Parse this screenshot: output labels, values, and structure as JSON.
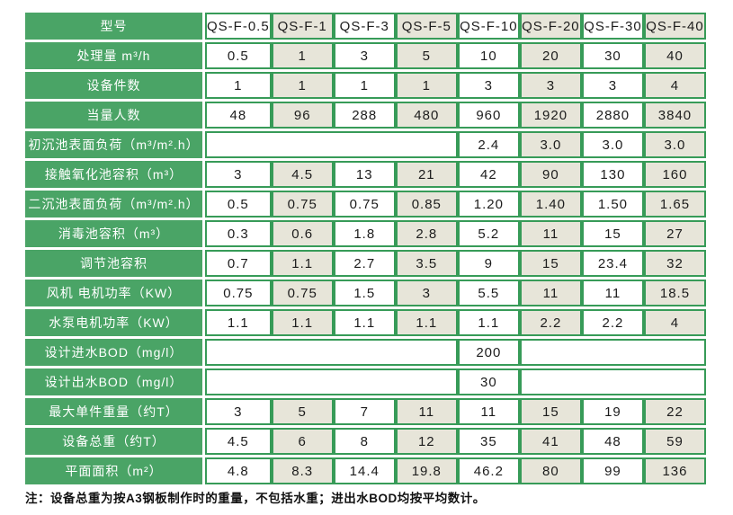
{
  "colors": {
    "header_green": "#4aa466",
    "border_green": "#379b58",
    "cell_shaded": "#e7e5d9",
    "cell_white": "#ffffff",
    "label_text": "#ffffff",
    "value_text": "#1c1c1c"
  },
  "table": {
    "model_row": {
      "label": "型号",
      "values": [
        "QS-F-0.5",
        "QS-F-1",
        "QS-F-3",
        "QS-F-5",
        "QS-F-10",
        "QS-F-20",
        "QS-F-30",
        "QS-F-40"
      ]
    },
    "rows": [
      {
        "label": "处理量 m³/h",
        "cells": [
          "0.5",
          "1",
          "3",
          "5",
          "10",
          "20",
          "30",
          "40"
        ]
      },
      {
        "label": "设备件数",
        "cells": [
          "1",
          "1",
          "1",
          "1",
          "3",
          "3",
          "3",
          "4"
        ]
      },
      {
        "label": "当量人数",
        "cells": [
          "48",
          "96",
          "288",
          "480",
          "960",
          "1920",
          "2880",
          "3840"
        ]
      },
      {
        "label": "初沉池表面负荷（m³/m².h）",
        "layout": "left-merged",
        "cells": [
          "2.4",
          "3.0",
          "3.0",
          "3.0"
        ]
      },
      {
        "label": "接触氧化池容积（m³）",
        "cells": [
          "3",
          "4.5",
          "13",
          "21",
          "42",
          "90",
          "130",
          "160"
        ]
      },
      {
        "label": "二沉池表面负荷（m³/m².h）",
        "cells": [
          "0.5",
          "0.75",
          "0.75",
          "0.85",
          "1.20",
          "1.40",
          "1.50",
          "1.65"
        ]
      },
      {
        "label": "消毒池容积（m³）",
        "cells": [
          "0.3",
          "0.6",
          "1.8",
          "2.8",
          "5.2",
          "11",
          "15",
          "27"
        ]
      },
      {
        "label": "调节池容积",
        "cells": [
          "0.7",
          "1.1",
          "2.7",
          "3.5",
          "9",
          "15",
          "23.4",
          "32"
        ]
      },
      {
        "label": "风机 电机功率（KW）",
        "cells": [
          "0.75",
          "0.75",
          "1.5",
          "3",
          "5.5",
          "11",
          "11",
          "18.5"
        ]
      },
      {
        "label": "水泵电机功率（KW）",
        "cells": [
          "1.1",
          "1.1",
          "1.1",
          "1.1",
          "1.1",
          "2.2",
          "2.2",
          "4"
        ]
      },
      {
        "label": "设计进水BOD（mg/l）",
        "layout": "single-value",
        "cells": [
          "200"
        ]
      },
      {
        "label": "设计出水BOD（mg/l）",
        "layout": "single-value",
        "cells": [
          "30"
        ]
      },
      {
        "label": "最大单件重量（约T）",
        "cells": [
          "3",
          "5",
          "7",
          "11",
          "11",
          "15",
          "19",
          "22"
        ]
      },
      {
        "label": "设备总重（约T）",
        "cells": [
          "4.5",
          "6",
          "8",
          "12",
          "35",
          "41",
          "48",
          "59"
        ]
      },
      {
        "label": "平面面积（m²）",
        "cells": [
          "4.8",
          "8.3",
          "14.4",
          "19.8",
          "46.2",
          "80",
          "99",
          "136"
        ]
      }
    ],
    "note": "注：设备总重为按A3钢板制作时的重量，不包括水重；进出水BOD均按平均数计。"
  }
}
